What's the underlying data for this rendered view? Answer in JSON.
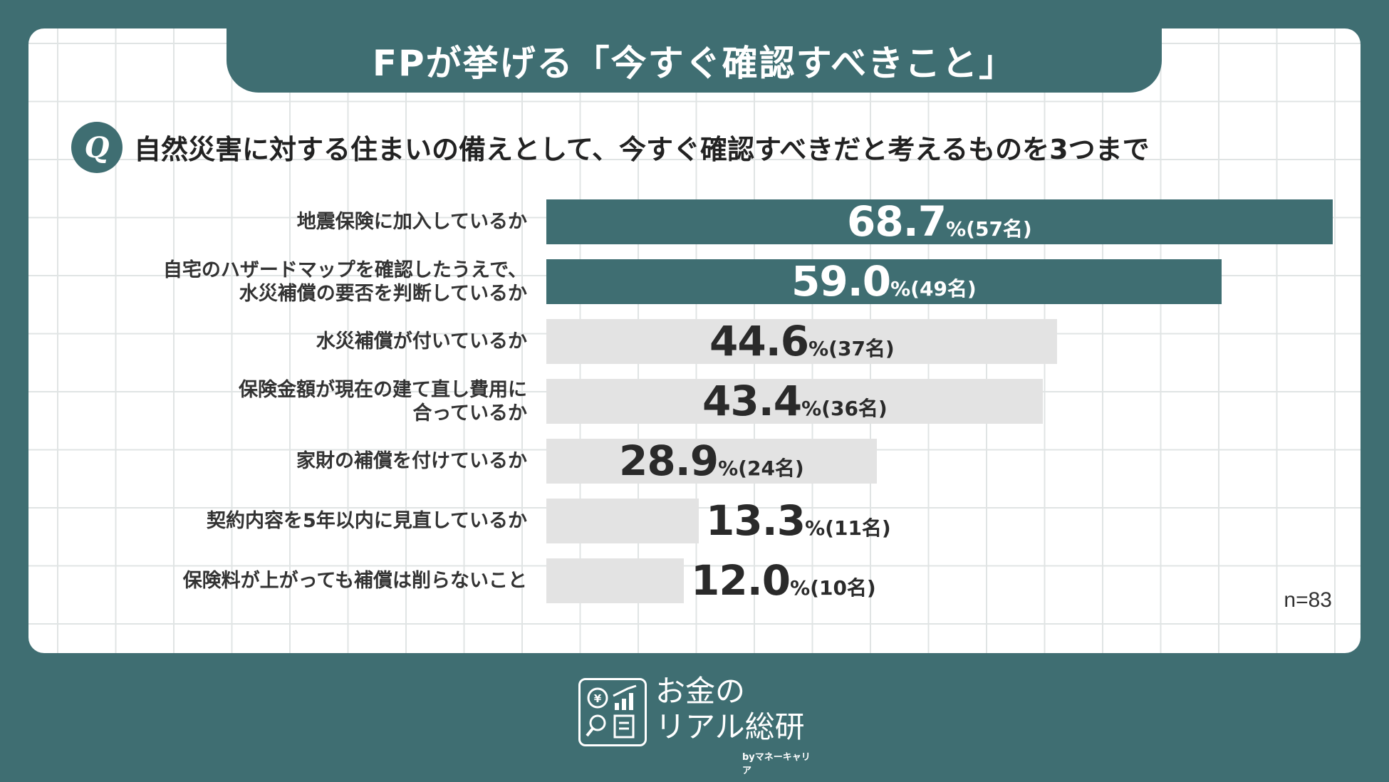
{
  "title": "FPが挙げる「今すぐ確認すべきこと」",
  "question": {
    "badge": "Q",
    "text": "自然災害に対する住まいの備えとして、今すぐ確認すべきだと考えるものを3つまで"
  },
  "note": "n=83",
  "brand": {
    "name": "お金の\nリアル総研",
    "sub": "byマネーキャリア"
  },
  "colors": {
    "highlight": "#3f6e72",
    "muted": "#e3e3e3",
    "background": "#3f6e72"
  },
  "chart_data": {
    "type": "bar",
    "orientation": "horizontal",
    "categories": [
      "地震保険に加入しているか",
      "自宅のハザードマップを確認したうえで、\n水災補償の要否を判断しているか",
      "水災補償が付いているか",
      "保険金額が現在の建て直し費用に\n合っているか",
      "家財の補償を付けているか",
      "契約内容を5年以内に見直しているか",
      "保険料が上がっても補償は削らないこと"
    ],
    "values": [
      68.7,
      59.0,
      44.6,
      43.4,
      28.9,
      13.3,
      12.0
    ],
    "value_labels": [
      "68.7",
      "59.0",
      "44.6",
      "43.4",
      "28.9",
      "13.3",
      "12.0"
    ],
    "unit": "%",
    "counts": [
      "(57名)",
      "(49名)",
      "(37名)",
      "(36名)",
      "(24名)",
      "(11名)",
      "(10名)"
    ],
    "highlighted": [
      true,
      true,
      false,
      false,
      false,
      false,
      false
    ],
    "xlim": [
      0,
      68.7
    ],
    "grid": true,
    "legend": "none"
  }
}
